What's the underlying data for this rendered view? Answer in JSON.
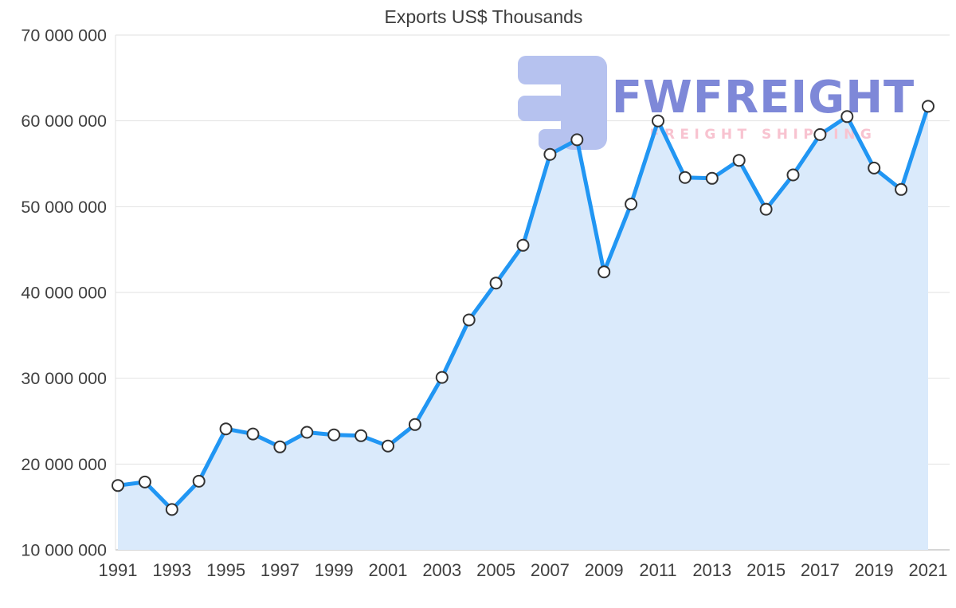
{
  "chart_data": {
    "type": "line",
    "title": "Exports US$ Thousands",
    "series_name": "Exports US$ Thousands",
    "x": [
      1991,
      1992,
      1993,
      1994,
      1995,
      1996,
      1997,
      1998,
      1999,
      2000,
      2001,
      2002,
      2003,
      2004,
      2005,
      2006,
      2007,
      2008,
      2009,
      2010,
      2011,
      2012,
      2013,
      2014,
      2015,
      2016,
      2017,
      2018,
      2019,
      2020,
      2021
    ],
    "values": [
      17500000,
      17900000,
      14700000,
      18000000,
      24100000,
      23500000,
      22000000,
      23700000,
      23400000,
      23300000,
      22100000,
      24600000,
      30100000,
      36800000,
      41100000,
      45500000,
      56100000,
      57800000,
      42400000,
      50300000,
      60000000,
      53400000,
      53300000,
      55400000,
      49700000,
      53700000,
      58400000,
      60500000,
      54500000,
      52000000,
      61700000
    ],
    "ylim": [
      10000000,
      70000000
    ],
    "ytick_interval": 10000000,
    "ytick_labels": [
      "10 000 000",
      "20 000 000",
      "30 000 000",
      "40 000 000",
      "50 000 000",
      "60 000 000",
      "70 000 000"
    ],
    "xtick_labels": [
      1991,
      1993,
      1995,
      1997,
      1999,
      2001,
      2003,
      2005,
      2007,
      2009,
      2011,
      2013,
      2015,
      2017,
      2019,
      2021
    ],
    "grid": "horizontal",
    "legend": "none",
    "marker": "circle",
    "area_fill": true,
    "colors": {
      "line": "#2196f3",
      "area": "#daeafb",
      "marker_fill": "#ffffff",
      "marker_stroke": "#333333",
      "grid": "#e2e2e2",
      "axis_line": "#c9c9c9",
      "axis_text": "#404040",
      "title": "#3d3d3d"
    }
  },
  "watermark": {
    "brand": "FWFREIGHT",
    "tagline": "FREIGHT SHIPPING",
    "brand_color": "#7e88d8",
    "tagline_color": "#f8c3d0",
    "mark_color": "#b6c2ef"
  }
}
